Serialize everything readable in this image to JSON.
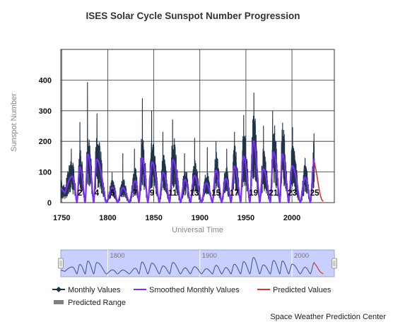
{
  "chart_data": {
    "type": "line",
    "title": "ISES Solar Cycle Sunspot Number Progression",
    "xlabel": "Universal Time",
    "ylabel": "Sunspot Number",
    "xlim": [
      1749,
      2046
    ],
    "ylim": [
      0,
      500
    ],
    "x_ticks": [
      "1750",
      "1800",
      "1850",
      "1900",
      "1950",
      "2000"
    ],
    "y_ticks": [
      "0",
      "100",
      "200",
      "300",
      "400"
    ],
    "grid": true,
    "legend_position": "bottom",
    "colors": {
      "monthly": "#1f3349",
      "smoothed": "#7b2ff7",
      "predicted": "#e0302a",
      "predicted_range": "#7f7f7f",
      "navigator_band": "#c9d0ff"
    },
    "cycles": [
      {
        "label": "",
        "min_year": 1755.2,
        "max_year": 1761.5,
        "max_smoothed": 86,
        "max_monthly": 175
      },
      {
        "label": "2",
        "min_year": 1766.5,
        "max_year": 1769.7,
        "max_smoothed": 116,
        "max_monthly": 262
      },
      {
        "label": "",
        "min_year": 1775.5,
        "max_year": 1778.4,
        "max_smoothed": 158,
        "max_monthly": 392
      },
      {
        "label": "4",
        "min_year": 1784.7,
        "max_year": 1788.1,
        "max_smoothed": 141,
        "max_monthly": 290
      },
      {
        "label": "5",
        "min_year": 1798.3,
        "max_year": 1805.2,
        "max_smoothed": 49,
        "max_monthly": 98
      },
      {
        "label": "",
        "min_year": 1810.6,
        "max_year": 1816.4,
        "max_smoothed": 48,
        "max_monthly": 160
      },
      {
        "label": "7",
        "min_year": 1823.3,
        "max_year": 1829.9,
        "max_smoothed": 71,
        "max_monthly": 175
      },
      {
        "label": "",
        "min_year": 1833.9,
        "max_year": 1837.2,
        "max_smoothed": 146,
        "max_monthly": 340
      },
      {
        "label": "9",
        "min_year": 1843.5,
        "max_year": 1848.1,
        "max_smoothed": 132,
        "max_monthly": 300
      },
      {
        "label": "",
        "min_year": 1855.9,
        "max_year": 1860.1,
        "max_smoothed": 98,
        "max_monthly": 230
      },
      {
        "label": "11",
        "min_year": 1867.2,
        "max_year": 1870.6,
        "max_smoothed": 140,
        "max_monthly": 270
      },
      {
        "label": "",
        "min_year": 1878.9,
        "max_year": 1883.9,
        "max_smoothed": 75,
        "max_monthly": 160
      },
      {
        "label": "13",
        "min_year": 1889.6,
        "max_year": 1894.1,
        "max_smoothed": 88,
        "max_monthly": 210
      },
      {
        "label": "",
        "min_year": 1901.7,
        "max_year": 1907.0,
        "max_smoothed": 64,
        "max_monthly": 180
      },
      {
        "label": "15",
        "min_year": 1913.6,
        "max_year": 1917.6,
        "max_smoothed": 105,
        "max_monthly": 200
      },
      {
        "label": "",
        "min_year": 1923.6,
        "max_year": 1928.4,
        "max_smoothed": 78,
        "max_monthly": 175
      },
      {
        "label": "17",
        "min_year": 1933.8,
        "max_year": 1937.4,
        "max_smoothed": 119,
        "max_monthly": 230
      },
      {
        "label": "",
        "min_year": 1944.2,
        "max_year": 1947.5,
        "max_smoothed": 151,
        "max_monthly": 285
      },
      {
        "label": "19",
        "min_year": 1954.3,
        "max_year": 1958.2,
        "max_smoothed": 201,
        "max_monthly": 358
      },
      {
        "label": "",
        "min_year": 1964.9,
        "max_year": 1968.9,
        "max_smoothed": 110,
        "max_monthly": 250
      },
      {
        "label": "21",
        "min_year": 1976.5,
        "max_year": 1979.9,
        "max_smoothed": 165,
        "max_monthly": 300
      },
      {
        "label": "",
        "min_year": 1986.8,
        "max_year": 1989.6,
        "max_smoothed": 159,
        "max_monthly": 260
      },
      {
        "label": "23",
        "min_year": 1996.4,
        "max_year": 2000.3,
        "max_smoothed": 120,
        "max_monthly": 245
      },
      {
        "label": "",
        "min_year": 2008.9,
        "max_year": 2014.3,
        "max_smoothed": 82,
        "max_monthly": 145
      },
      {
        "label": "25",
        "min_year": 2019.9,
        "max_year": 2024.6,
        "max_smoothed": 145,
        "max_monthly": 225
      }
    ],
    "predicted_values": [
      {
        "x": 2024.0,
        "y": 138
      },
      {
        "x": 2025.0,
        "y": 122
      },
      {
        "x": 2026.0,
        "y": 108
      },
      {
        "x": 2027.0,
        "y": 90
      },
      {
        "x": 2028.0,
        "y": 72
      },
      {
        "x": 2029.0,
        "y": 52
      },
      {
        "x": 2030.0,
        "y": 36
      },
      {
        "x": 2031.0,
        "y": 22
      },
      {
        "x": 2032.0,
        "y": 12
      },
      {
        "x": 2033.0,
        "y": 7
      },
      {
        "x": 2034.0,
        "y": 4
      }
    ],
    "navigator": {
      "x_ticks": [
        "1800",
        "1900",
        "2000"
      ]
    },
    "legend": [
      {
        "key": "monthly",
        "label": "Monthly Values"
      },
      {
        "key": "smoothed",
        "label": "Smoothed Monthly Values"
      },
      {
        "key": "predicted",
        "label": "Predicted Values"
      },
      {
        "key": "predicted_range",
        "label": "Predicted Range"
      }
    ]
  },
  "footer": {
    "credit": "Space Weather Prediction Center"
  }
}
